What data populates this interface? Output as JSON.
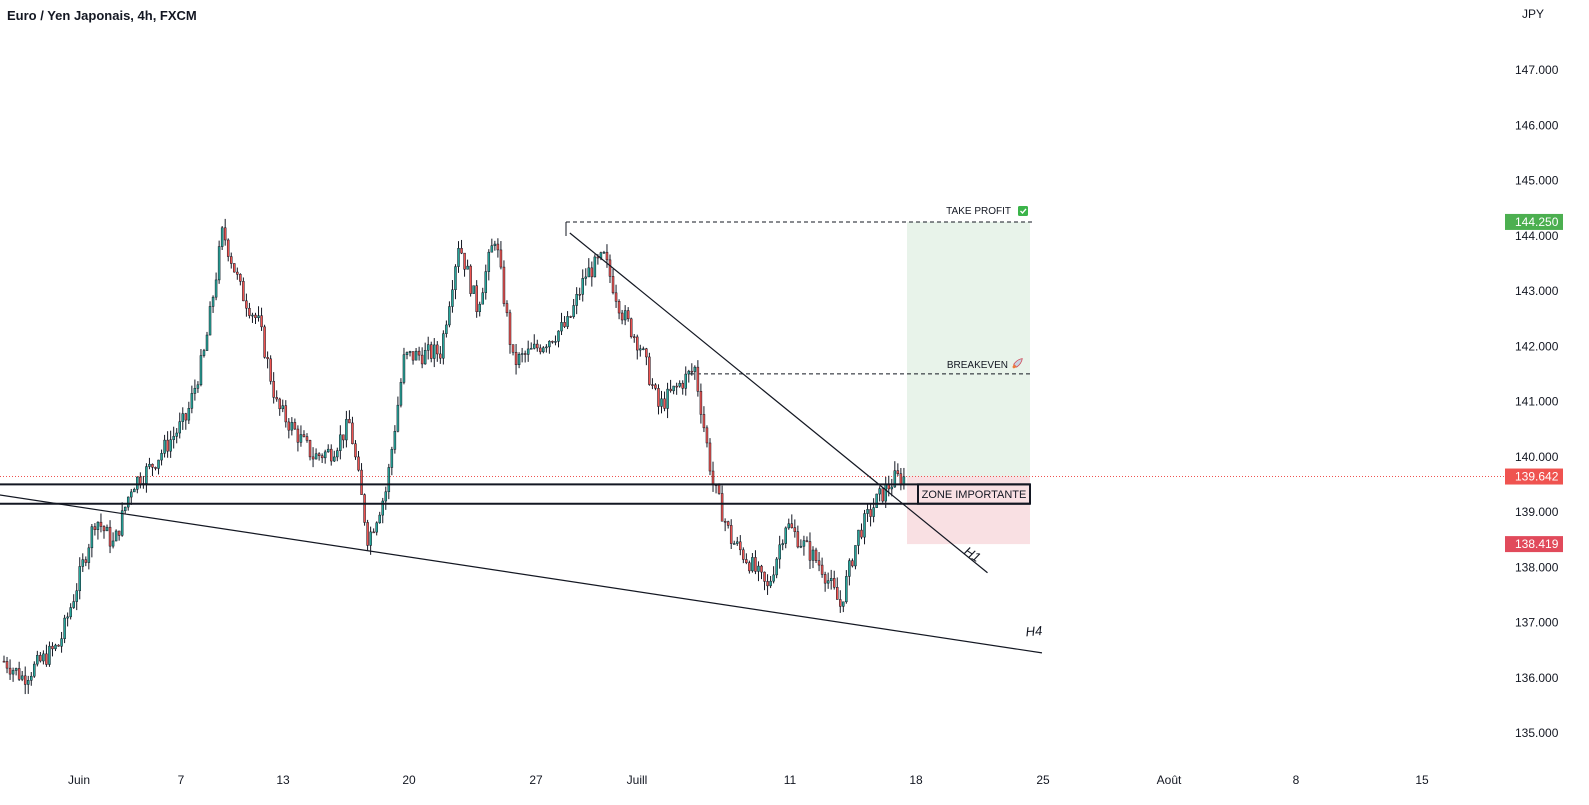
{
  "header": {
    "title": "Euro / Yen Japonais, 4h, FXCM"
  },
  "colors": {
    "up": "#26a69a",
    "down": "#ef5350",
    "wick": "#131722",
    "profit_zone": "#e8f3ea",
    "loss_zone": "#f9e0e3",
    "tp_badge": "#4caf50",
    "last_badge": "#ef5350",
    "sl_badge": "#e14a5b",
    "current_line": "#ef5350"
  },
  "chart_data": {
    "type": "candlestick",
    "currency_label": "JPY",
    "ylim": [
      134.6,
      147.9
    ],
    "y_ticks": [
      135.0,
      136.0,
      137.0,
      138.0,
      139.0,
      140.0,
      141.0,
      142.0,
      143.0,
      144.0,
      145.0,
      146.0,
      147.0
    ],
    "y_tick_labels": [
      "135.000",
      "136.000",
      "137.000",
      "138.000",
      "139.000",
      "140.000",
      "141.000",
      "142.000",
      "143.000",
      "144.000",
      "145.000",
      "146.000",
      "147.000"
    ],
    "x_axis_labels": [
      "Juin",
      "7",
      "13",
      "20",
      "27",
      "Juill",
      "11",
      "18",
      "25",
      "Août",
      "8",
      "15"
    ],
    "close_path": [
      [
        "2021-05-28",
        136.3
      ],
      [
        "2021-05-29",
        136.0
      ],
      [
        "2021-05-31",
        136.6
      ],
      [
        "2021-06-01",
        137.7
      ],
      [
        "2021-06-02",
        138.9
      ],
      [
        "2021-06-03",
        138.4
      ],
      [
        "2021-06-04",
        139.5
      ],
      [
        "2021-06-05",
        139.8
      ],
      [
        "2021-06-07",
        140.7
      ],
      [
        "2021-06-08",
        141.9
      ],
      [
        "2021-06-09",
        144.1
      ],
      [
        "2021-06-10",
        143.0
      ],
      [
        "2021-06-11",
        142.4
      ],
      [
        "2021-06-12",
        140.9
      ],
      [
        "2021-06-14",
        140.0
      ],
      [
        "2021-06-15",
        140.1
      ],
      [
        "2021-06-16",
        140.6
      ],
      [
        "2021-06-17",
        138.5
      ],
      [
        "2021-06-18",
        139.4
      ],
      [
        "2021-06-19",
        141.8
      ],
      [
        "2021-06-21",
        141.9
      ],
      [
        "2021-06-22",
        143.9
      ],
      [
        "2021-06-23",
        142.7
      ],
      [
        "2021-06-24",
        144.0
      ],
      [
        "2021-06-25",
        141.7
      ],
      [
        "2021-06-26",
        141.9
      ],
      [
        "2021-06-28",
        142.4
      ],
      [
        "2021-06-29",
        143.3
      ],
      [
        "2021-06-30",
        143.6
      ],
      [
        "2021-07-01",
        142.6
      ],
      [
        "2021-07-02",
        142.0
      ],
      [
        "2021-07-03",
        140.9
      ],
      [
        "2021-07-05",
        141.6
      ],
      [
        "2021-07-06",
        139.5
      ],
      [
        "2021-07-07",
        138.5
      ],
      [
        "2021-07-08",
        138.1
      ],
      [
        "2021-07-09",
        137.6
      ],
      [
        "2021-07-10",
        138.8
      ],
      [
        "2021-07-12",
        138.0
      ],
      [
        "2021-07-13",
        137.3
      ],
      [
        "2021-07-14",
        138.6
      ],
      [
        "2021-07-15",
        139.2
      ],
      [
        "2021-07-16",
        139.6
      ],
      [
        "2021-07-17",
        139.64
      ]
    ],
    "current_price": 139.642,
    "current_price_label": "139.642",
    "take_profit": 144.25,
    "take_profit_label": "144.250",
    "stop_loss": 138.419,
    "stop_loss_label": "138.419",
    "breakeven": 141.5,
    "zone_importante": [
      139.15,
      139.5
    ],
    "trendline_h1": {
      "start": [
        "2021-06-28",
        144.05
      ],
      "end": [
        "2021-07-21",
        137.9
      ]
    },
    "trendline_h4": {
      "start": [
        "2021-05-31",
        139.35
      ],
      "end": [
        "2021-07-24",
        136.45
      ]
    },
    "annotations": {
      "take_profit": "TAKE PROFIT",
      "take_profit_icon": "check-mark-icon",
      "breakeven": "BREAKEVEN",
      "breakeven_icon": "rocket-icon",
      "zone": "ZONE IMPORTANTE",
      "h1": "H1",
      "h4": "H4"
    }
  }
}
